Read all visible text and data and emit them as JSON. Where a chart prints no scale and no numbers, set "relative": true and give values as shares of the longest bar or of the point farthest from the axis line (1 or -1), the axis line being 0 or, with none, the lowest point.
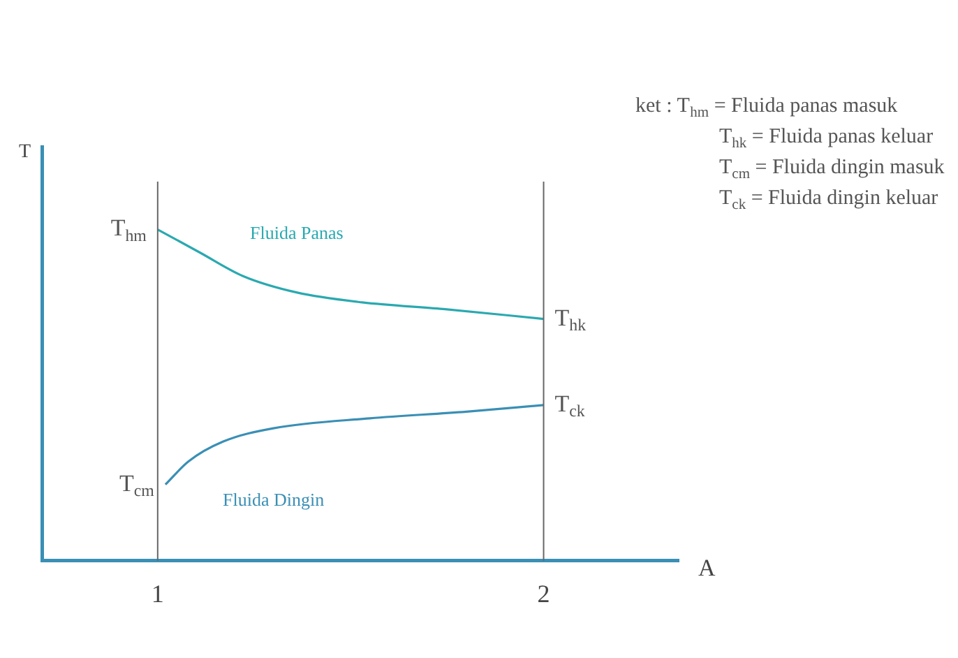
{
  "chart_data": {
    "type": "line",
    "relative": true,
    "xlabel": "A",
    "ylabel": "T",
    "xlim": [
      0.7,
      2.35
    ],
    "xticks": [
      1,
      2
    ],
    "grid": false,
    "legend": false,
    "marker": "none",
    "line_style": "solid",
    "series": [
      {
        "name": "Fluida Panas",
        "color": "#2aa9b0",
        "x": [
          1.0,
          1.11,
          1.22,
          1.36,
          1.53,
          1.74,
          2.0
        ],
        "values": [
          1.0,
          0.93,
          0.86,
          0.81,
          0.78,
          0.76,
          0.73
        ]
      },
      {
        "name": "Fluida Dingin",
        "color": "#3a8fb5",
        "x": [
          1.02,
          1.08,
          1.17,
          1.3,
          1.55,
          1.8,
          2.0
        ],
        "values": [
          0.23,
          0.3,
          0.36,
          0.4,
          0.43,
          0.45,
          0.47
        ]
      }
    ],
    "ref_lines": [
      {
        "axis": "x",
        "value": 1,
        "color": "#666666"
      },
      {
        "axis": "x",
        "value": 2,
        "color": "#666666"
      }
    ],
    "annotations": [
      {
        "text": "T$_{hm}$",
        "x": 1.0,
        "y": 1.0
      },
      {
        "text": "T$_{hk}$",
        "x": 2.0,
        "y": 0.73
      },
      {
        "text": "T$_{cm}$",
        "x": 1.02,
        "y": 0.23
      },
      {
        "text": "T$_{ck}$",
        "x": 2.0,
        "y": 0.47
      },
      "ket : T$_{hm}$ = Fluida panas masuk",
      "T$_{hk}$ = Fluida panas keluar",
      "T$_{cm}$ = Fluida dingin masuk",
      "T$_{ck}$ = Fluida dingin keluar"
    ]
  }
}
